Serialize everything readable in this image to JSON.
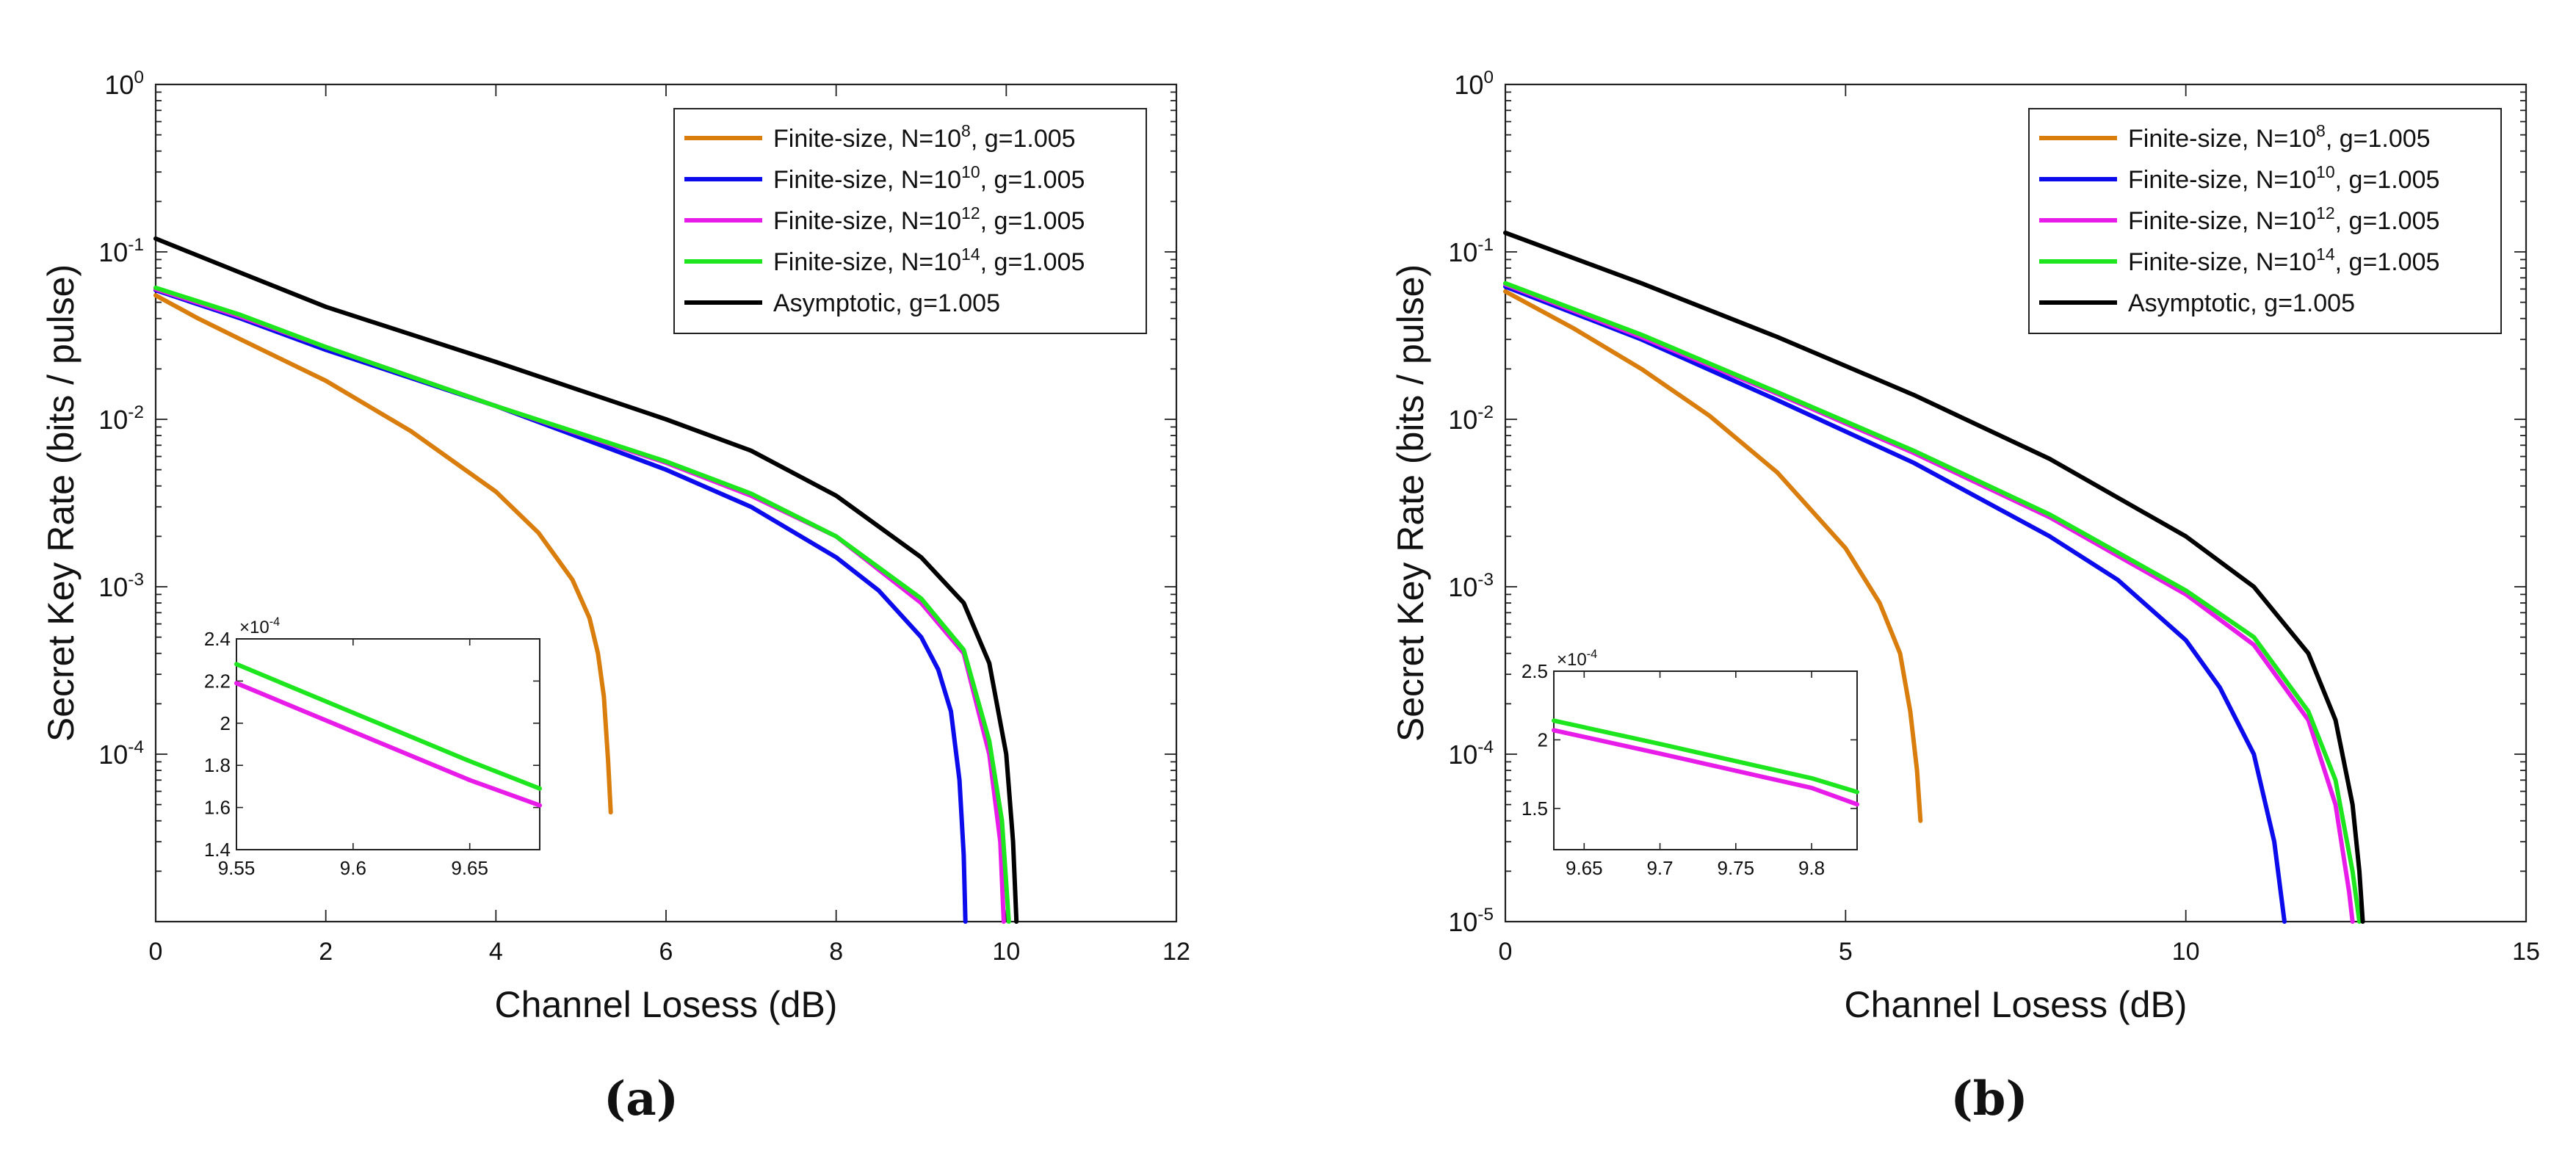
{
  "chart_data": [
    {
      "type": "line",
      "panel_label": "(a)",
      "xlabel": "Channel Losess (dB)",
      "ylabel": "Secret Key Rate (bits / pulse)",
      "yscale": "log",
      "xlim": [
        0,
        12
      ],
      "ylim_exp": [
        -5,
        0
      ],
      "xticks": [
        0,
        2,
        4,
        6,
        8,
        10,
        12
      ],
      "xtick_labels": [
        "0",
        "2",
        "4",
        "6",
        "8",
        "10",
        "12"
      ],
      "yticks_exp": [
        -4,
        -3,
        -2,
        -1,
        0
      ],
      "ytick_base": "10",
      "ytick_exps": [
        "-4",
        "-3",
        "-2",
        "-1",
        "0"
      ],
      "legend_position": "top-right",
      "series": [
        {
          "name": "Finite-size, N=10^8, g=1.005",
          "legend_pre": "Finite-size, N=10",
          "legend_sup": "8",
          "legend_post": ", g=1.005",
          "color": "#D97D0D",
          "points": [
            [
              0,
              0.055
            ],
            [
              0.5,
              0.04
            ],
            [
              1,
              0.03
            ],
            [
              2,
              0.017
            ],
            [
              3,
              0.0085
            ],
            [
              4,
              0.0037
            ],
            [
              4.5,
              0.0021
            ],
            [
              4.9,
              0.0011
            ],
            [
              5.1,
              0.00065
            ],
            [
              5.2,
              0.0004
            ],
            [
              5.27,
              0.00022
            ],
            [
              5.32,
              9e-05
            ],
            [
              5.35,
              4.5e-05
            ]
          ]
        },
        {
          "name": "Finite-size, N=10^10, g=1.005",
          "legend_pre": "Finite-size, N=10",
          "legend_sup": "10",
          "legend_post": ", g=1.005",
          "color": "#0B0BEB",
          "points": [
            [
              0,
              0.059
            ],
            [
              1,
              0.04
            ],
            [
              2,
              0.026
            ],
            [
              4,
              0.012
            ],
            [
              6,
              0.005
            ],
            [
              7,
              0.003
            ],
            [
              8,
              0.0015
            ],
            [
              8.5,
              0.00095
            ],
            [
              9,
              0.0005
            ],
            [
              9.2,
              0.00032
            ],
            [
              9.35,
              0.00018
            ],
            [
              9.45,
              7e-05
            ],
            [
              9.5,
              2.5e-05
            ],
            [
              9.52,
              1e-05
            ]
          ]
        },
        {
          "name": "Finite-size, N=10^12, g=1.005",
          "legend_pre": "Finite-size, N=10",
          "legend_sup": "12",
          "legend_post": ", g=1.005",
          "color": "#E81CE8",
          "points": [
            [
              0,
              0.06
            ],
            [
              1,
              0.041
            ],
            [
              2,
              0.027
            ],
            [
              4,
              0.012
            ],
            [
              6,
              0.0055
            ],
            [
              7,
              0.0035
            ],
            [
              8,
              0.002
            ],
            [
              9,
              0.0008
            ],
            [
              9.5,
              0.0004
            ],
            [
              9.8,
              0.0001
            ],
            [
              9.93,
              3e-05
            ],
            [
              9.97,
              1e-05
            ]
          ]
        },
        {
          "name": "Finite-size, N=10^14, g=1.005",
          "legend_pre": "Finite-size, N=10",
          "legend_sup": "14",
          "legend_post": ", g=1.005",
          "color": "#1EE61E",
          "points": [
            [
              0,
              0.061
            ],
            [
              1,
              0.042
            ],
            [
              2,
              0.027
            ],
            [
              4,
              0.012
            ],
            [
              6,
              0.0056
            ],
            [
              7,
              0.0036
            ],
            [
              8,
              0.002
            ],
            [
              9,
              0.00085
            ],
            [
              9.5,
              0.00042
            ],
            [
              9.8,
              0.00012
            ],
            [
              9.95,
              4e-05
            ],
            [
              10.03,
              1e-05
            ]
          ]
        },
        {
          "name": "Asymptotic, g=1.005",
          "legend_pre": "Asymptotic, g=1.005",
          "legend_sup": "",
          "legend_post": "",
          "color": "#000000",
          "points": [
            [
              0,
              0.12
            ],
            [
              1,
              0.075
            ],
            [
              2,
              0.047
            ],
            [
              4,
              0.022
            ],
            [
              6,
              0.01
            ],
            [
              7,
              0.0065
            ],
            [
              8,
              0.0035
            ],
            [
              9,
              0.0015
            ],
            [
              9.5,
              0.0008
            ],
            [
              9.8,
              0.00035
            ],
            [
              10,
              0.0001
            ],
            [
              10.08,
              3e-05
            ],
            [
              10.12,
              1e-05
            ]
          ]
        }
      ],
      "inset": {
        "xlim": [
          9.55,
          9.68
        ],
        "ylim": [
          1.4,
          2.4
        ],
        "xticks": [
          9.55,
          9.6,
          9.65
        ],
        "xtick_labels": [
          "9.55",
          "9.6",
          "9.65"
        ],
        "yticks": [
          1.4,
          1.6,
          1.8,
          2.0,
          2.2,
          2.4
        ],
        "ytick_labels": [
          "1.4",
          "1.6",
          "1.8",
          "2",
          "2.2",
          "2.4"
        ],
        "multiplier_base": "×10",
        "multiplier_exp": "-4",
        "series": [
          {
            "name": "Finite-size, N=10^14, g=1.005",
            "color": "#1EE61E",
            "points": [
              [
                9.55,
                2.28
              ],
              [
                9.6,
                2.05
              ],
              [
                9.65,
                1.82
              ],
              [
                9.68,
                1.69
              ]
            ]
          },
          {
            "name": "Finite-size, N=10^12, g=1.005",
            "color": "#E81CE8",
            "points": [
              [
                9.55,
                2.19
              ],
              [
                9.6,
                1.96
              ],
              [
                9.65,
                1.73
              ],
              [
                9.68,
                1.61
              ]
            ]
          }
        ]
      }
    },
    {
      "type": "line",
      "panel_label": "(b)",
      "xlabel": "Channel Losess (dB)",
      "ylabel": "Secret Key Rate (bits / pulse)",
      "yscale": "log",
      "xlim": [
        0,
        15
      ],
      "ylim_exp": [
        -5,
        0
      ],
      "xticks": [
        0,
        5,
        10,
        15
      ],
      "xtick_labels": [
        "0",
        "5",
        "10",
        "15"
      ],
      "yticks_exp": [
        -5,
        -4,
        -3,
        -2,
        -1,
        0
      ],
      "ytick_base": "10",
      "ytick_exps": [
        "-5",
        "-4",
        "-3",
        "-2",
        "-1",
        "0"
      ],
      "legend_position": "top-right",
      "series": [
        {
          "name": "Finite-size, N=10^8, g=1.005",
          "legend_pre": "Finite-size, N=10",
          "legend_sup": "8",
          "legend_post": ", g=1.005",
          "color": "#D97D0D",
          "points": [
            [
              0,
              0.058
            ],
            [
              1,
              0.035
            ],
            [
              2,
              0.02
            ],
            [
              3,
              0.0105
            ],
            [
              4,
              0.0048
            ],
            [
              5,
              0.0017
            ],
            [
              5.5,
              0.0008
            ],
            [
              5.8,
              0.0004
            ],
            [
              5.95,
              0.00018
            ],
            [
              6.05,
              8e-05
            ],
            [
              6.1,
              4e-05
            ]
          ]
        },
        {
          "name": "Finite-size, N=10^10, g=1.005",
          "legend_pre": "Finite-size, N=10",
          "legend_sup": "10",
          "legend_post": ", g=1.005",
          "color": "#0B0BEB",
          "points": [
            [
              0,
              0.062
            ],
            [
              2,
              0.03
            ],
            [
              4,
              0.013
            ],
            [
              6,
              0.0055
            ],
            [
              8,
              0.002
            ],
            [
              9,
              0.0011
            ],
            [
              10,
              0.00048
            ],
            [
              10.5,
              0.00025
            ],
            [
              11,
              0.0001
            ],
            [
              11.3,
              3e-05
            ],
            [
              11.45,
              1e-05
            ]
          ]
        },
        {
          "name": "Finite-size, N=10^12, g=1.005",
          "legend_pre": "Finite-size, N=10",
          "legend_sup": "12",
          "legend_post": ", g=1.005",
          "color": "#E81CE8",
          "points": [
            [
              0,
              0.064
            ],
            [
              2,
              0.031
            ],
            [
              4,
              0.0142
            ],
            [
              6,
              0.0063
            ],
            [
              8,
              0.0026
            ],
            [
              10,
              0.0009
            ],
            [
              11,
              0.00045
            ],
            [
              11.8,
              0.00016
            ],
            [
              12.2,
              5e-05
            ],
            [
              12.4,
              1.5e-05
            ],
            [
              12.45,
              1e-05
            ]
          ]
        },
        {
          "name": "Finite-size, N=10^14, g=1.005",
          "legend_pre": "Finite-size, N=10",
          "legend_sup": "14",
          "legend_post": ", g=1.005",
          "color": "#1EE61E",
          "points": [
            [
              0,
              0.065
            ],
            [
              2,
              0.032
            ],
            [
              4,
              0.0145
            ],
            [
              6,
              0.0065
            ],
            [
              8,
              0.0027
            ],
            [
              10,
              0.00095
            ],
            [
              11,
              0.0005
            ],
            [
              11.8,
              0.00018
            ],
            [
              12.2,
              7e-05
            ],
            [
              12.45,
              2e-05
            ],
            [
              12.55,
              1e-05
            ]
          ]
        },
        {
          "name": "Asymptotic, g=1.005",
          "legend_pre": "Asymptotic, g=1.005",
          "legend_sup": "",
          "legend_post": "",
          "color": "#000000",
          "points": [
            [
              0,
              0.13
            ],
            [
              2,
              0.065
            ],
            [
              4,
              0.031
            ],
            [
              6,
              0.014
            ],
            [
              8,
              0.0058
            ],
            [
              10,
              0.002
            ],
            [
              11,
              0.001
            ],
            [
              11.8,
              0.0004
            ],
            [
              12.2,
              0.00016
            ],
            [
              12.45,
              5e-05
            ],
            [
              12.55,
              2e-05
            ],
            [
              12.6,
              1e-05
            ]
          ]
        }
      ],
      "inset": {
        "xlim": [
          9.63,
          9.83
        ],
        "ylim": [
          1.2,
          2.5
        ],
        "xticks": [
          9.65,
          9.7,
          9.75,
          9.8
        ],
        "xtick_labels": [
          "9.65",
          "9.7",
          "9.75",
          "9.8"
        ],
        "yticks": [
          1.5,
          2.0,
          2.5
        ],
        "ytick_labels": [
          "1.5",
          "2",
          "2.5"
        ],
        "multiplier_base": "×10",
        "multiplier_exp": "-4",
        "series": [
          {
            "name": "Finite-size, N=10^14, g=1.005",
            "color": "#1EE61E",
            "points": [
              [
                9.63,
                2.14
              ],
              [
                9.7,
                1.97
              ],
              [
                9.8,
                1.72
              ],
              [
                9.83,
                1.62
              ]
            ]
          },
          {
            "name": "Finite-size, N=10^12, g=1.005",
            "color": "#E81CE8",
            "points": [
              [
                9.63,
                2.07
              ],
              [
                9.7,
                1.9
              ],
              [
                9.8,
                1.65
              ],
              [
                9.83,
                1.53
              ]
            ]
          }
        ]
      }
    }
  ]
}
